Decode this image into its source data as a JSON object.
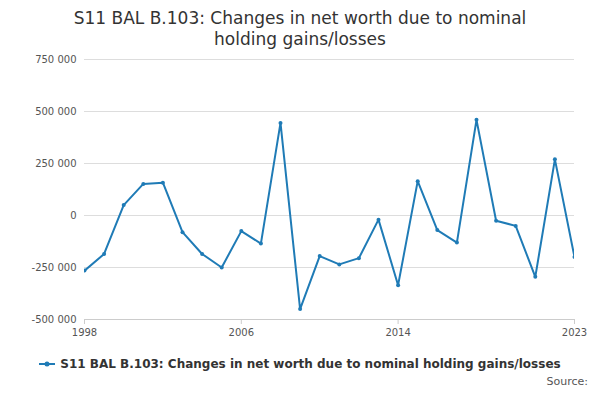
{
  "chart_data": {
    "type": "line",
    "title": "S11 BAL B.103: Changes in net worth due to nominal holding gains/losses",
    "source": "Source:",
    "x": [
      1998,
      1999,
      2000,
      2001,
      2002,
      2003,
      2004,
      2005,
      2006,
      2007,
      2008,
      2009,
      2010,
      2011,
      2012,
      2013,
      2014,
      2015,
      2016,
      2017,
      2018,
      2019,
      2020,
      2021,
      2022,
      2023
    ],
    "series": [
      {
        "name": "S11 BAL B.103: Changes in net worth due to nominal holding gains/losses",
        "color": "#1f7bb6",
        "marker": "circle",
        "values": [
          -265000,
          -185000,
          50000,
          152000,
          158000,
          -80000,
          -185000,
          -250000,
          -75000,
          -135000,
          445000,
          -450000,
          -195000,
          -235000,
          -205000,
          -20000,
          -335000,
          165000,
          -70000,
          -130000,
          460000,
          -25000,
          -50000,
          -295000,
          270000,
          -200000
        ]
      }
    ],
    "xlim": [
      1998,
      2023
    ],
    "xticks": [
      1998,
      2006,
      2014,
      2023
    ],
    "ylim": [
      -500000,
      750000
    ],
    "yticks": [
      {
        "value": -500000,
        "label": "-500 000"
      },
      {
        "value": -250000,
        "label": "-250 000"
      },
      0,
      {
        "value": 250000,
        "label": "250 000"
      },
      {
        "value": 500000,
        "label": "500 000"
      },
      {
        "value": 750000,
        "label": "750 000"
      }
    ],
    "grid": true,
    "legend": "bottom"
  }
}
